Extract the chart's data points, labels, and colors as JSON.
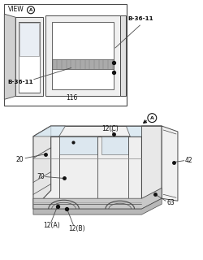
{
  "bg": "white",
  "lc": "#4a4a4a",
  "dc": "#111111",
  "labels": {
    "view_a": "VIEW",
    "B36_top": "B-36-11",
    "B36_bot": "B-36-11",
    "n116": "116",
    "n20": "20",
    "n70": "70",
    "n12C": "12(C)",
    "n12A": "12(A)",
    "n12B": "12(B)",
    "n42": "42",
    "n63": "63"
  },
  "fs": 5.5
}
